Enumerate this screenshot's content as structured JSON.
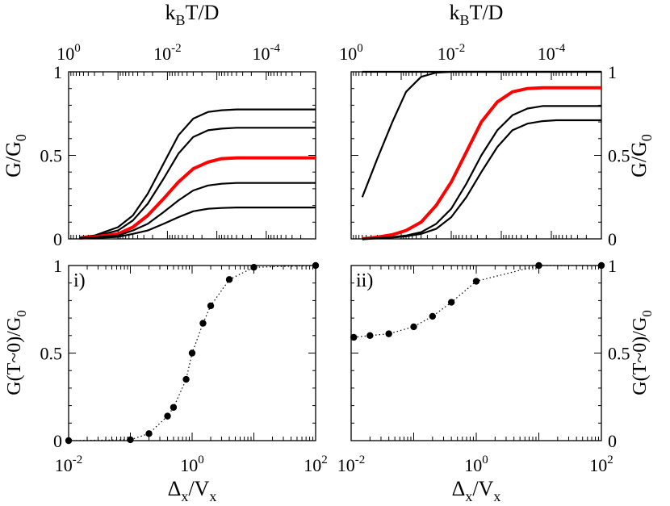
{
  "figure": {
    "top_axis_label": {
      "base": "k",
      "sub": "B",
      "rest": "T/D"
    },
    "top_axis_ticks": [
      {
        "base": "10",
        "exp": "0"
      },
      {
        "base": "10",
        "exp": "-2"
      },
      {
        "base": "10",
        "exp": "-4"
      }
    ],
    "bottom_axis_label": {
      "a": "Δ",
      "sub1": "x",
      "b": "/V",
      "sub2": "x"
    },
    "bottom_axis_ticks": [
      {
        "base": "10",
        "exp": "-2"
      },
      {
        "base": "10",
        "exp": "0"
      },
      {
        "base": "10",
        "exp": "2"
      }
    ],
    "top_ylabel": {
      "base": "G/G",
      "sub": "0"
    },
    "bottom_ylabel": {
      "base": "G(T~0)/G",
      "sub": "0"
    },
    "top_yticks": [
      "0",
      "0.5",
      "1"
    ],
    "bottom_yticks": [
      "0",
      "0.5",
      "1"
    ],
    "colors": {
      "black": "#000000",
      "red": "#ff0000"
    }
  },
  "chart_data": [
    {
      "panel": "top-left",
      "type": "line",
      "x_axis": "kBT/D (log scale, decreasing to the right)",
      "xlim": [
        1,
        1e-05
      ],
      "ylim": [
        0,
        1
      ],
      "x": [
        0.6,
        0.3,
        0.1,
        0.05,
        0.025,
        0.012,
        0.006,
        0.003,
        0.0015,
        0.0008,
        0.0004,
        0.0002,
        0.0001,
        1e-05
      ],
      "series": [
        {
          "color": "#000000",
          "values": [
            0.01,
            0.02,
            0.07,
            0.14,
            0.27,
            0.45,
            0.62,
            0.72,
            0.76,
            0.77,
            0.775,
            0.775,
            0.775,
            0.775
          ]
        },
        {
          "color": "#000000",
          "values": [
            0.008,
            0.015,
            0.05,
            0.11,
            0.21,
            0.36,
            0.51,
            0.61,
            0.65,
            0.66,
            0.665,
            0.665,
            0.665,
            0.665
          ]
        },
        {
          "color": "#ff0000",
          "values": [
            0.005,
            0.012,
            0.03,
            0.07,
            0.14,
            0.24,
            0.34,
            0.42,
            0.46,
            0.48,
            0.485,
            0.485,
            0.485,
            0.485
          ]
        },
        {
          "color": "#000000",
          "values": [
            0.004,
            0.009,
            0.02,
            0.05,
            0.09,
            0.16,
            0.23,
            0.29,
            0.32,
            0.33,
            0.335,
            0.335,
            0.335,
            0.335
          ]
        },
        {
          "color": "#000000",
          "values": [
            0.003,
            0.006,
            0.012,
            0.03,
            0.05,
            0.09,
            0.13,
            0.165,
            0.18,
            0.185,
            0.188,
            0.188,
            0.188,
            0.188
          ]
        }
      ]
    },
    {
      "panel": "top-right",
      "type": "line",
      "x_axis": "kBT/D (log scale, decreasing to the right)",
      "xlim": [
        1,
        1e-05
      ],
      "ylim": [
        0,
        1
      ],
      "x": [
        0.6,
        0.3,
        0.15,
        0.08,
        0.04,
        0.02,
        0.01,
        0.005,
        0.0025,
        0.0012,
        0.0006,
        0.0003,
        0.00015,
        8e-05,
        4e-05,
        1e-05
      ],
      "series": [
        {
          "color": "#000000",
          "values": [
            1.0,
            1.0,
            1.0,
            1.0,
            1.0,
            1.0,
            1.0,
            1.0,
            1.0,
            1.0,
            1.0,
            1.0,
            1.0,
            1.0,
            1.0,
            1.0
          ]
        },
        {
          "color": "#000000",
          "values": [
            0.25,
            0.48,
            0.7,
            0.88,
            0.97,
            0.995,
            1.0,
            1.0,
            1.0,
            1.0,
            1.0,
            1.0,
            1.0,
            1.0,
            1.0,
            1.0
          ]
        },
        {
          "color": "#ff0000",
          "values": [
            0.0,
            0.01,
            0.025,
            0.05,
            0.1,
            0.2,
            0.34,
            0.52,
            0.7,
            0.82,
            0.88,
            0.9,
            0.905,
            0.905,
            0.905,
            0.905
          ]
        },
        {
          "color": "#000000",
          "values": [
            0.0,
            0.004,
            0.01,
            0.02,
            0.04,
            0.09,
            0.18,
            0.33,
            0.5,
            0.65,
            0.74,
            0.78,
            0.795,
            0.795,
            0.795,
            0.795
          ]
        },
        {
          "color": "#000000",
          "values": [
            0.0,
            0.003,
            0.008,
            0.015,
            0.03,
            0.06,
            0.13,
            0.25,
            0.4,
            0.55,
            0.65,
            0.69,
            0.705,
            0.71,
            0.71,
            0.71
          ]
        }
      ]
    },
    {
      "panel": "bottom-left",
      "label": "i)",
      "type": "scatter",
      "x_axis": "Δx/Vx (log scale)",
      "xlim": [
        0.01,
        100
      ],
      "ylim": [
        0,
        1
      ],
      "connect": "dotted",
      "x": [
        0.01,
        0.1,
        0.2,
        0.4,
        0.5,
        0.8,
        1.0,
        1.5,
        2.0,
        4.0,
        10.0,
        100.0
      ],
      "values": [
        0.0,
        0.005,
        0.04,
        0.14,
        0.19,
        0.35,
        0.5,
        0.67,
        0.77,
        0.92,
        0.99,
        1.0
      ]
    },
    {
      "panel": "bottom-right",
      "label": "ii)",
      "type": "scatter",
      "x_axis": "Δx/Vx (log scale)",
      "xlim": [
        0.01,
        100
      ],
      "ylim": [
        0,
        1
      ],
      "connect": "dotted",
      "x": [
        0.011,
        0.02,
        0.04,
        0.1,
        0.2,
        0.4,
        1.0,
        10.0,
        100.0
      ],
      "values": [
        0.59,
        0.6,
        0.61,
        0.65,
        0.71,
        0.79,
        0.91,
        1.0,
        1.0
      ]
    }
  ]
}
